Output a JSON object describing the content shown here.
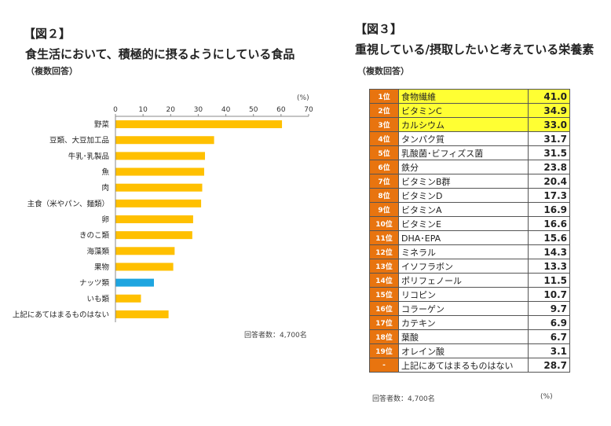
{
  "fig2": {
    "label": "【図２】",
    "title": "食生活において、積極的に摂るようにしている食品",
    "subtitle": "（複数回答）",
    "unit": "(%)",
    "note": "回答者数：4,700名"
  },
  "fig3": {
    "label": "【図３】",
    "title": "重視している/摂取したいと考えている栄養素",
    "subtitle": "（複数回答）",
    "note": "回答者数：4,700名",
    "unit": "(%)",
    "highlight_color": "#ffff33",
    "rank_color": "#e8740f"
  },
  "chart_data": [
    {
      "type": "bar",
      "orientation": "horizontal",
      "title": "食生活において、積極的に摂るようにしている食品",
      "categories": [
        "野菜",
        "豆類、大豆加工品",
        "牛乳･乳製品",
        "魚",
        "肉",
        "主食（米やパン、麺類）",
        "卵",
        "きのこ類",
        "海藻類",
        "果物",
        "ナッツ類",
        "いも類",
        "上記にあてはまるものはない"
      ],
      "values": [
        60.2,
        35.6,
        32.3,
        32.0,
        31.3,
        30.9,
        28.0,
        27.7,
        21.3,
        20.8,
        13.8,
        9.1,
        19.1
      ],
      "colors": [
        "#ffc000",
        "#ffc000",
        "#ffc000",
        "#ffc000",
        "#ffc000",
        "#ffc000",
        "#ffc000",
        "#ffc000",
        "#ffc000",
        "#ffc000",
        "#1ea5e0",
        "#ffc000",
        "#ffc000"
      ],
      "xlim": [
        0,
        70
      ],
      "xticks": [
        0,
        10,
        20,
        30,
        40,
        50,
        60,
        70
      ],
      "unit": "(%)",
      "grid": false
    },
    {
      "type": "table",
      "title": "重視している/摂取したいと考えている栄養素",
      "rows": [
        {
          "rank": "1位",
          "name": "食物繊維",
          "value": "41.0",
          "highlight": true
        },
        {
          "rank": "2位",
          "name": "ビタミンC",
          "value": "34.9",
          "highlight": true
        },
        {
          "rank": "3位",
          "name": "カルシウム",
          "value": "33.0",
          "highlight": true
        },
        {
          "rank": "4位",
          "name": "タンパク質",
          "value": "31.7"
        },
        {
          "rank": "5位",
          "name": "乳酸菌･ビフィズス菌",
          "value": "31.5"
        },
        {
          "rank": "6位",
          "name": "鉄分",
          "value": "23.8"
        },
        {
          "rank": "7位",
          "name": "ビタミンB群",
          "value": "20.4"
        },
        {
          "rank": "8位",
          "name": "ビタミンD",
          "value": "17.3"
        },
        {
          "rank": "9位",
          "name": "ビタミンA",
          "value": "16.9"
        },
        {
          "rank": "10位",
          "name": "ビタミンE",
          "value": "16.6"
        },
        {
          "rank": "11位",
          "name": "DHA･EPA",
          "value": "15.6"
        },
        {
          "rank": "12位",
          "name": "ミネラル",
          "value": "14.3"
        },
        {
          "rank": "13位",
          "name": "イソフラボン",
          "value": "13.3"
        },
        {
          "rank": "14位",
          "name": "ポリフェノール",
          "value": "11.5"
        },
        {
          "rank": "15位",
          "name": "リコピン",
          "value": "10.7"
        },
        {
          "rank": "16位",
          "name": "コラーゲン",
          "value": "9.7"
        },
        {
          "rank": "17位",
          "name": "カテキン",
          "value": "6.9"
        },
        {
          "rank": "18位",
          "name": "葉酸",
          "value": "6.7"
        },
        {
          "rank": "19位",
          "name": "オレイン酸",
          "value": "3.1"
        },
        {
          "rank": "-",
          "name": "上記にあてはまるものはない",
          "value": "28.7"
        }
      ]
    }
  ]
}
